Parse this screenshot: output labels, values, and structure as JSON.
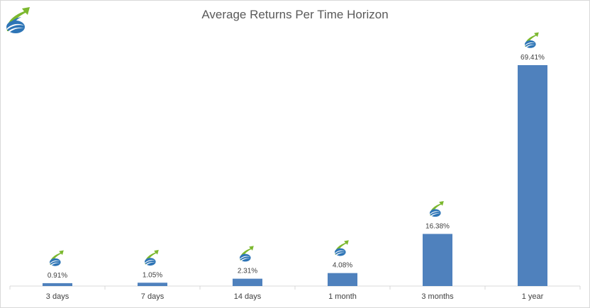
{
  "chart_data": {
    "type": "bar",
    "title": "Average Returns Per Time Horizon",
    "xlabel": "",
    "ylabel": "",
    "categories": [
      "3 days",
      "7 days",
      "14 days",
      "1 month",
      "3 months",
      "1 year"
    ],
    "values": [
      0.91,
      1.05,
      2.31,
      4.08,
      16.38,
      69.41
    ],
    "data_labels": [
      "0.91%",
      "1.05%",
      "2.31%",
      "4.08%",
      "16.38%",
      "69.41%"
    ],
    "ylim": [
      0,
      70
    ],
    "grid": false,
    "legend": "none",
    "bar_color": "#4f81bd",
    "axis_color": "#d9d9d9",
    "label_color": "#404040",
    "icons": [
      "logo-icon"
    ]
  }
}
